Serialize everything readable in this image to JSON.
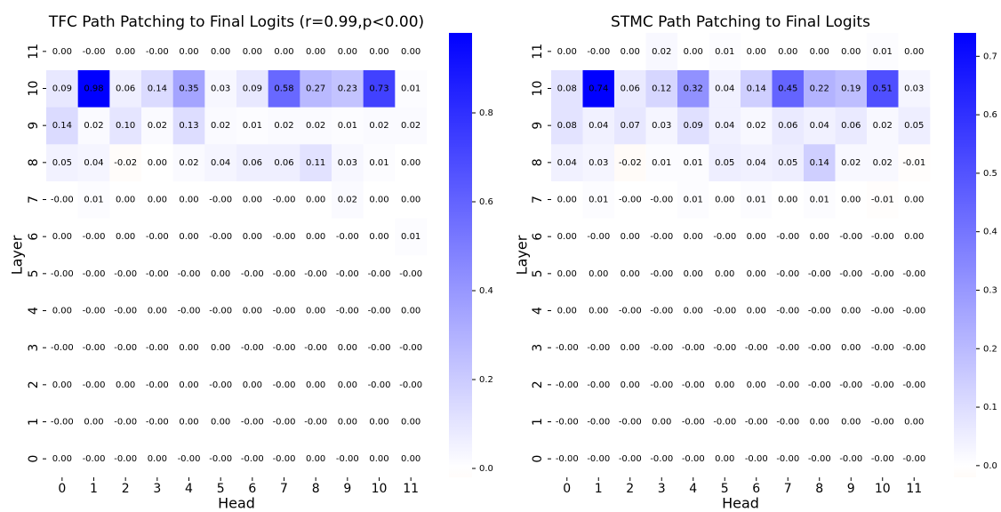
{
  "chart_data": [
    {
      "type": "heatmap",
      "title": "TFC Path Patching to Final Logits (r=0.99,p<0.00)",
      "x_label": "Head",
      "y_label": "Layer",
      "x_categories": [
        0,
        1,
        2,
        3,
        4,
        5,
        6,
        7,
        8,
        9,
        10,
        11
      ],
      "y_categories": [
        0,
        1,
        2,
        3,
        4,
        5,
        6,
        7,
        8,
        9,
        10,
        11
      ],
      "values": [
        [
          0,
          -0.001,
          -0.001,
          0,
          -0.001,
          -0.001,
          -0.001,
          -0.001,
          0,
          -0.001,
          0,
          0
        ],
        [
          -0.001,
          0,
          -0.001,
          -0.001,
          0,
          0,
          -0.001,
          -0.001,
          -0.001,
          0,
          0,
          0
        ],
        [
          0,
          -0.001,
          0,
          -0.001,
          0,
          -0.001,
          0,
          -0.001,
          0,
          0,
          -0.001,
          -0.001
        ],
        [
          -0.001,
          -0.001,
          -0.001,
          -0.001,
          0,
          0,
          -0.001,
          -0.001,
          -0.001,
          0,
          -0.001,
          -0.001
        ],
        [
          0,
          -0.001,
          -0.001,
          0,
          -0.001,
          -0.001,
          0,
          -0.001,
          0,
          -0.001,
          -0.001,
          0
        ],
        [
          -0.001,
          -0.001,
          -0.001,
          -0.001,
          -0.001,
          0,
          -0.001,
          -0.001,
          -0.001,
          -0.001,
          -0.001,
          -0.001
        ],
        [
          0,
          -0.001,
          0,
          -0.001,
          0,
          -0.001,
          0,
          -0.001,
          0,
          -0.001,
          0,
          0.01
        ],
        [
          -0.001,
          0.01,
          0,
          0,
          0,
          -0.001,
          0,
          -0.001,
          0,
          0.02,
          0,
          0
        ],
        [
          0.05,
          0.04,
          -0.02,
          0,
          0.02,
          0.04,
          0.06,
          0.06,
          0.11,
          0.03,
          0.01,
          0
        ],
        [
          0.14,
          0.02,
          0.1,
          0.02,
          0.13,
          0.02,
          0.01,
          0.02,
          0.02,
          0.01,
          0.02,
          0.02
        ],
        [
          0.09,
          0.98,
          0.06,
          0.14,
          0.35,
          0.03,
          0.09,
          0.58,
          0.27,
          0.23,
          0.73,
          0.01
        ],
        [
          0,
          -0.001,
          0,
          -0.001,
          0,
          0,
          0,
          0,
          0,
          0,
          0,
          0
        ]
      ],
      "value_labels": [
        [
          "0.00",
          "-0.00",
          "-0.00",
          "0.00",
          "-0.00",
          "-0.00",
          "-0.00",
          "-0.00",
          "0.00",
          "-0.00",
          "0.00",
          "0.00"
        ],
        [
          "-0.00",
          "0.00",
          "-0.00",
          "-0.00",
          "0.00",
          "0.00",
          "-0.00",
          "-0.00",
          "-0.00",
          "0.00",
          "0.00",
          "0.00"
        ],
        [
          "0.00",
          "-0.00",
          "0.00",
          "-0.00",
          "0.00",
          "-0.00",
          "0.00",
          "-0.00",
          "0.00",
          "0.00",
          "-0.00",
          "-0.00"
        ],
        [
          "-0.00",
          "-0.00",
          "-0.00",
          "-0.00",
          "0.00",
          "0.00",
          "-0.00",
          "-0.00",
          "-0.00",
          "0.00",
          "-0.00",
          "-0.00"
        ],
        [
          "0.00",
          "-0.00",
          "-0.00",
          "0.00",
          "-0.00",
          "-0.00",
          "0.00",
          "-0.00",
          "0.00",
          "-0.00",
          "-0.00",
          "0.00"
        ],
        [
          "-0.00",
          "-0.00",
          "-0.00",
          "-0.00",
          "-0.00",
          "0.00",
          "-0.00",
          "-0.00",
          "-0.00",
          "-0.00",
          "-0.00",
          "-0.00"
        ],
        [
          "0.00",
          "-0.00",
          "0.00",
          "-0.00",
          "0.00",
          "-0.00",
          "0.00",
          "-0.00",
          "0.00",
          "-0.00",
          "0.00",
          "0.01"
        ],
        [
          "-0.00",
          "0.01",
          "0.00",
          "0.00",
          "0.00",
          "-0.00",
          "0.00",
          "-0.00",
          "0.00",
          "0.02",
          "0.00",
          "0.00"
        ],
        [
          "0.05",
          "0.04",
          "-0.02",
          "0.00",
          "0.02",
          "0.04",
          "0.06",
          "0.06",
          "0.11",
          "0.03",
          "0.01",
          "0.00"
        ],
        [
          "0.14",
          "0.02",
          "0.10",
          "0.02",
          "0.13",
          "0.02",
          "0.01",
          "0.02",
          "0.02",
          "0.01",
          "0.02",
          "0.02"
        ],
        [
          "0.09",
          "0.98",
          "0.06",
          "0.14",
          "0.35",
          "0.03",
          "0.09",
          "0.58",
          "0.27",
          "0.23",
          "0.73",
          "0.01"
        ],
        [
          "0.00",
          "-0.00",
          "0.00",
          "-0.00",
          "0.00",
          "0.00",
          "0.00",
          "0.00",
          "0.00",
          "0.00",
          "0.00",
          "0.00"
        ]
      ],
      "clim": [
        -0.02,
        0.98
      ],
      "cticks": [
        {
          "value": 0,
          "label": "0.0"
        },
        0.2,
        0.4,
        0.6,
        0.8
      ],
      "colors": [
        "#ff7000",
        "#ffffff",
        "#0000ff"
      ]
    },
    {
      "type": "heatmap",
      "title": "STMC Path Patching to Final Logits",
      "x_label": "Head",
      "y_label": "Layer",
      "x_categories": [
        0,
        1,
        2,
        3,
        4,
        5,
        6,
        7,
        8,
        9,
        10,
        11
      ],
      "y_categories": [
        0,
        1,
        2,
        3,
        4,
        5,
        6,
        7,
        8,
        9,
        10,
        11
      ],
      "values": [
        [
          -0.001,
          -0.001,
          -0.001,
          -0.001,
          -0.001,
          0,
          -0.001,
          -0.001,
          -0.001,
          -0.001,
          -0.001,
          -0.001
        ],
        [
          -0.001,
          -0.001,
          -0.001,
          0,
          -0.001,
          -0.001,
          -0.001,
          -0.001,
          0,
          0,
          -0.001,
          0
        ],
        [
          -0.001,
          -0.001,
          0,
          -0.001,
          -0.001,
          0,
          0,
          -0.001,
          -0.001,
          -0.001,
          -0.001,
          -0.001
        ],
        [
          -0.001,
          -0.001,
          0,
          -0.001,
          -0.001,
          -0.001,
          -0.001,
          -0.001,
          -0.001,
          0,
          -0.001,
          -0.001
        ],
        [
          0,
          0,
          -0.001,
          -0.001,
          0,
          -0.001,
          0,
          -0.001,
          -0.001,
          0,
          -0.001,
          -0.001
        ],
        [
          0,
          0,
          0,
          -0.001,
          0,
          0,
          0,
          -0.001,
          -0.001,
          -0.001,
          -0.001,
          -0.001
        ],
        [
          0,
          -0.001,
          0,
          -0.001,
          0,
          -0.001,
          0,
          -0.001,
          0,
          -0.001,
          -0.001,
          0
        ],
        [
          0,
          0.01,
          -0.001,
          -0.001,
          0.01,
          0,
          0.01,
          0,
          0.01,
          0,
          -0.01,
          0
        ],
        [
          0.04,
          0.03,
          -0.02,
          0.01,
          0.01,
          0.05,
          0.04,
          0.05,
          0.14,
          0.02,
          0.02,
          -0.01
        ],
        [
          0.08,
          0.04,
          0.07,
          0.03,
          0.09,
          0.04,
          0.02,
          0.06,
          0.04,
          0.06,
          0.02,
          0.05
        ],
        [
          0.08,
          0.74,
          0.06,
          0.12,
          0.32,
          0.04,
          0.14,
          0.45,
          0.22,
          0.19,
          0.51,
          0.03
        ],
        [
          0,
          -0.001,
          0,
          0.02,
          0,
          0.01,
          0,
          0,
          0,
          0,
          0.01,
          0
        ]
      ],
      "value_labels": [
        [
          "-0.00",
          "-0.00",
          "-0.00",
          "-0.00",
          "-0.00",
          "0.00",
          "-0.00",
          "-0.00",
          "-0.00",
          "-0.00",
          "-0.00",
          "-0.00"
        ],
        [
          "-0.00",
          "-0.00",
          "-0.00",
          "0.00",
          "-0.00",
          "-0.00",
          "-0.00",
          "-0.00",
          "0.00",
          "0.00",
          "-0.00",
          "0.00"
        ],
        [
          "-0.00",
          "-0.00",
          "0.00",
          "-0.00",
          "-0.00",
          "0.00",
          "0.00",
          "-0.00",
          "-0.00",
          "-0.00",
          "-0.00",
          "-0.00"
        ],
        [
          "-0.00",
          "-0.00",
          "0.00",
          "-0.00",
          "-0.00",
          "-0.00",
          "-0.00",
          "-0.00",
          "-0.00",
          "0.00",
          "-0.00",
          "-0.00"
        ],
        [
          "0.00",
          "0.00",
          "-0.00",
          "-0.00",
          "0.00",
          "-0.00",
          "0.00",
          "-0.00",
          "-0.00",
          "0.00",
          "-0.00",
          "-0.00"
        ],
        [
          "0.00",
          "0.00",
          "0.00",
          "-0.00",
          "0.00",
          "0.00",
          "0.00",
          "-0.00",
          "-0.00",
          "-0.00",
          "-0.00",
          "-0.00"
        ],
        [
          "0.00",
          "-0.00",
          "0.00",
          "-0.00",
          "0.00",
          "-0.00",
          "0.00",
          "-0.00",
          "0.00",
          "-0.00",
          "-0.00",
          "0.00"
        ],
        [
          "0.00",
          "0.01",
          "-0.00",
          "-0.00",
          "0.01",
          "0.00",
          "0.01",
          "0.00",
          "0.01",
          "0.00",
          "-0.01",
          "0.00"
        ],
        [
          "0.04",
          "0.03",
          "-0.02",
          "0.01",
          "0.01",
          "0.05",
          "0.04",
          "0.05",
          "0.14",
          "0.02",
          "0.02",
          "-0.01"
        ],
        [
          "0.08",
          "0.04",
          "0.07",
          "0.03",
          "0.09",
          "0.04",
          "0.02",
          "0.06",
          "0.04",
          "0.06",
          "0.02",
          "0.05"
        ],
        [
          "0.08",
          "0.74",
          "0.06",
          "0.12",
          "0.32",
          "0.04",
          "0.14",
          "0.45",
          "0.22",
          "0.19",
          "0.51",
          "0.03"
        ],
        [
          "0.00",
          "-0.00",
          "0.00",
          "0.02",
          "0.00",
          "0.01",
          "0.00",
          "0.00",
          "0.00",
          "0.00",
          "0.01",
          "0.00"
        ]
      ],
      "clim": [
        -0.02,
        0.74
      ],
      "cticks": [
        {
          "value": 0,
          "label": "0.0"
        },
        0.1,
        0.2,
        0.3,
        0.4,
        0.5,
        0.6,
        0.7
      ],
      "colors": [
        "#ff7000",
        "#ffffff",
        "#0000ff"
      ]
    }
  ]
}
